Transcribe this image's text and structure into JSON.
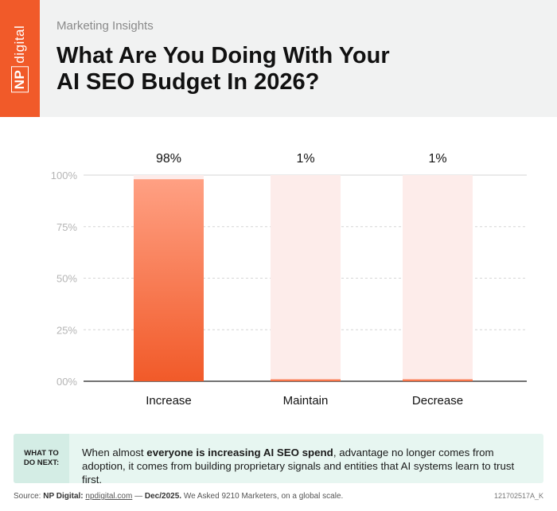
{
  "header": {
    "logo_np": "NP",
    "logo_digital": "digital",
    "subtitle": "Marketing Insights",
    "title_line1": "What Are You Doing With Your",
    "title_line2": "AI SEO Budget In 2026?"
  },
  "chart_data": {
    "type": "bar",
    "categories": [
      "Increase",
      "Maintain",
      "Decrease"
    ],
    "values": [
      98,
      1,
      1
    ],
    "value_labels": [
      "98%",
      "1%",
      "1%"
    ],
    "ylim": [
      0,
      100
    ],
    "yticks": [
      0,
      25,
      50,
      75,
      100
    ],
    "ytick_labels": [
      "00%",
      "25%",
      "50%",
      "75%",
      "100%"
    ],
    "grid": true,
    "colors": {
      "bar_top": "#ffa083",
      "bar_bottom": "#f15a29",
      "bar_bg": "#fdecea",
      "grid": "#d6d6d6"
    }
  },
  "callout": {
    "label_line1": "WHAT TO",
    "label_line2": "DO NEXT:",
    "text_before": "When almost ",
    "text_bold": "everyone is increasing AI SEO spend",
    "text_after": ", advantage no longer comes from adoption, it comes from building proprietary signals and entities that AI systems learn to trust first."
  },
  "footer": {
    "source_prefix": "Source: ",
    "source_name": "NP Digital: ",
    "source_link": "npdigital.com",
    "dash": " — ",
    "date": "Dec/2025.",
    "rest": " We Asked 9210 Marketers, on a global scale.",
    "code": "121702517A_K"
  }
}
